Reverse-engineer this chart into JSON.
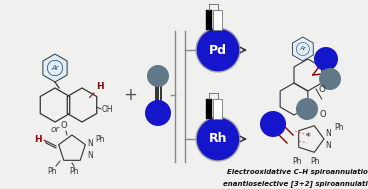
{
  "bg_color": "#f0f0ee",
  "blue_circle": "#1515cc",
  "gray_circle": "#607888",
  "dark_red": "#8b0000",
  "bond_color": "#333333",
  "text_color": "#111111",
  "pd_label": "Pd",
  "rh_label": "Rh",
  "top_text": "Electrooxidative C–H spiroannulation",
  "bottom_text": "enantioselective [3+2] spiroannulation",
  "ar_label": "Ar",
  "figsize": [
    3.68,
    1.89
  ],
  "dpi": 100,
  "xlim": [
    0,
    368
  ],
  "ylim": [
    0,
    189
  ]
}
